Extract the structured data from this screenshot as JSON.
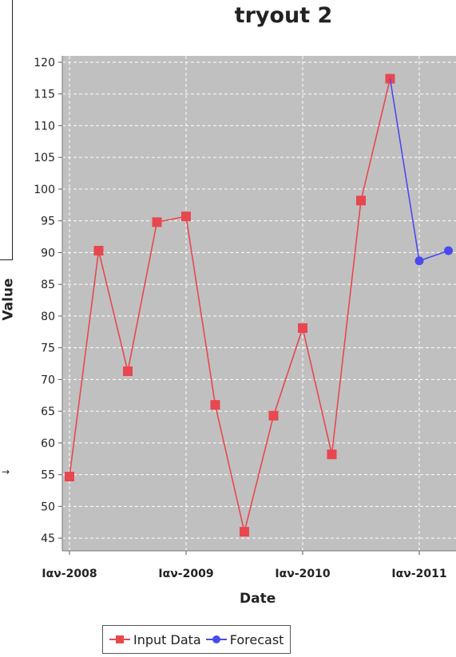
{
  "chart_data": {
    "type": "line",
    "title": "tryout 2",
    "xlabel": "Date",
    "ylabel": "Value",
    "ylim": [
      43,
      121
    ],
    "yticks": [
      45,
      50,
      55,
      60,
      65,
      70,
      75,
      80,
      85,
      90,
      95,
      100,
      105,
      110,
      115,
      120
    ],
    "xticks": [
      "Ιαν-2008",
      "Ιαν-2009",
      "Ιαν-2010",
      "Ιαν-2011"
    ],
    "grid": true,
    "legend": "bottom",
    "series": [
      {
        "name": "Input Data",
        "color": "#e8474f",
        "marker": "square",
        "points": [
          {
            "x": "2008-01",
            "y": 54.7
          },
          {
            "x": "2008-04",
            "y": 90.3
          },
          {
            "x": "2008-07",
            "y": 71.3
          },
          {
            "x": "2008-10",
            "y": 94.8
          },
          {
            "x": "2009-01",
            "y": 95.7
          },
          {
            "x": "2009-04",
            "y": 66.0
          },
          {
            "x": "2009-07",
            "y": 46.0
          },
          {
            "x": "2009-10",
            "y": 64.3
          },
          {
            "x": "2010-01",
            "y": 78.1
          },
          {
            "x": "2010-04",
            "y": 58.2
          },
          {
            "x": "2010-07",
            "y": 98.2
          },
          {
            "x": "2010-10",
            "y": 117.4
          }
        ]
      },
      {
        "name": "Forecast",
        "color": "#4a4af0",
        "marker": "circle",
        "points": [
          {
            "x": "2010-10",
            "y": 117.4
          },
          {
            "x": "2011-01",
            "y": 88.7
          },
          {
            "x": "2011-04",
            "y": 90.3
          }
        ]
      }
    ]
  }
}
